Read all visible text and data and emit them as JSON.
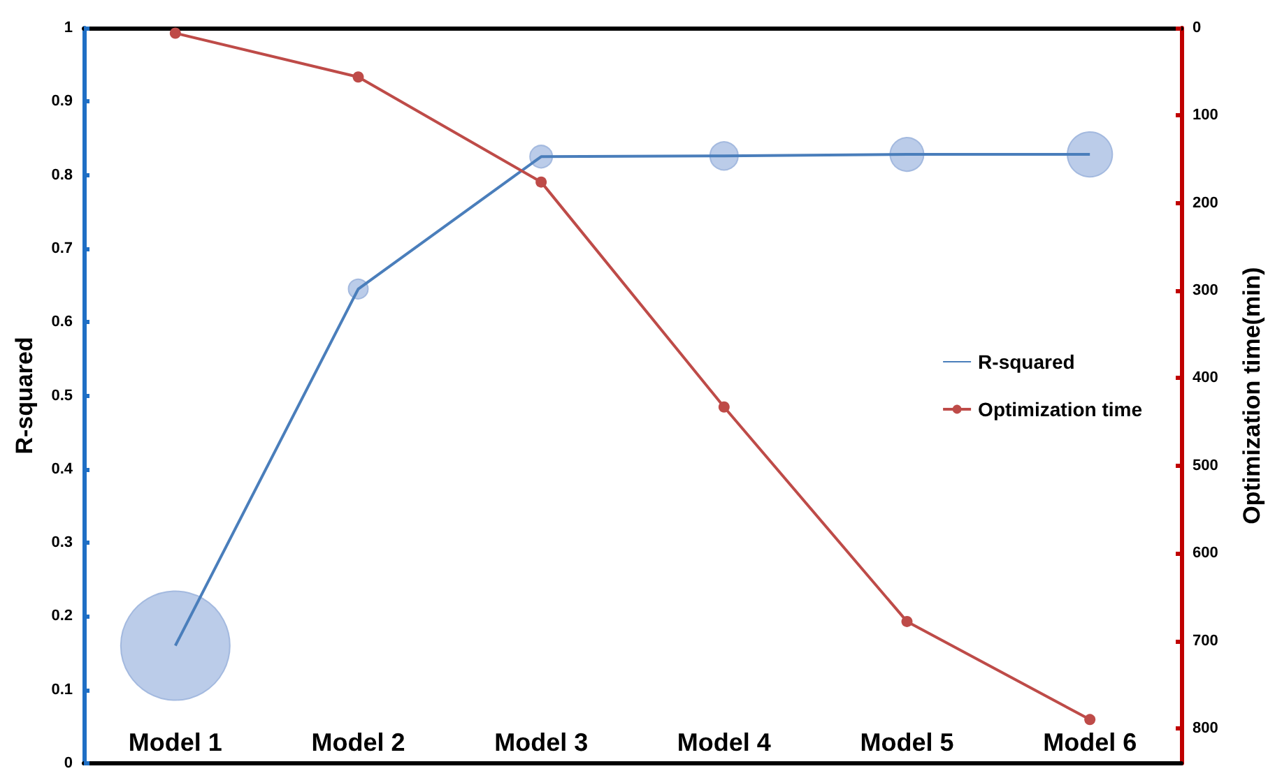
{
  "chart_data": {
    "type": "line",
    "categories": [
      "Model 1",
      "Model 2",
      "Model 3",
      "Model 4",
      "Model 5",
      "Model 6"
    ],
    "ylabel": "R-squared",
    "y2label": "Optimization time(min)",
    "ylim": [
      0,
      1
    ],
    "yticks": [
      0,
      0.1,
      0.2,
      0.3,
      0.4,
      0.5,
      0.6,
      0.7,
      0.8,
      0.9,
      1
    ],
    "y2lim": [
      840,
      0
    ],
    "y2ticks": [
      0,
      100,
      200,
      300,
      400,
      500,
      600,
      700,
      800
    ],
    "series": [
      {
        "type": "bubble",
        "color": "#b4c7e7",
        "values": [
          0.16,
          0.645,
          0.825,
          0.826,
          0.828,
          0.828
        ],
        "sizes": [
          1,
          0.032,
          0.042,
          0.066,
          0.095,
          0.17
        ]
      },
      {
        "name": "R-squared",
        "color": "#4a7ebb",
        "values": [
          0.16,
          0.645,
          0.825,
          0.826,
          0.828,
          0.828
        ]
      },
      {
        "name": "Optimization time",
        "axis": "y2",
        "color": "#be4b48",
        "values": [
          6,
          56,
          176,
          433,
          678,
          790
        ],
        "marker": "circle"
      }
    ],
    "legend": "right",
    "grid": false
  }
}
